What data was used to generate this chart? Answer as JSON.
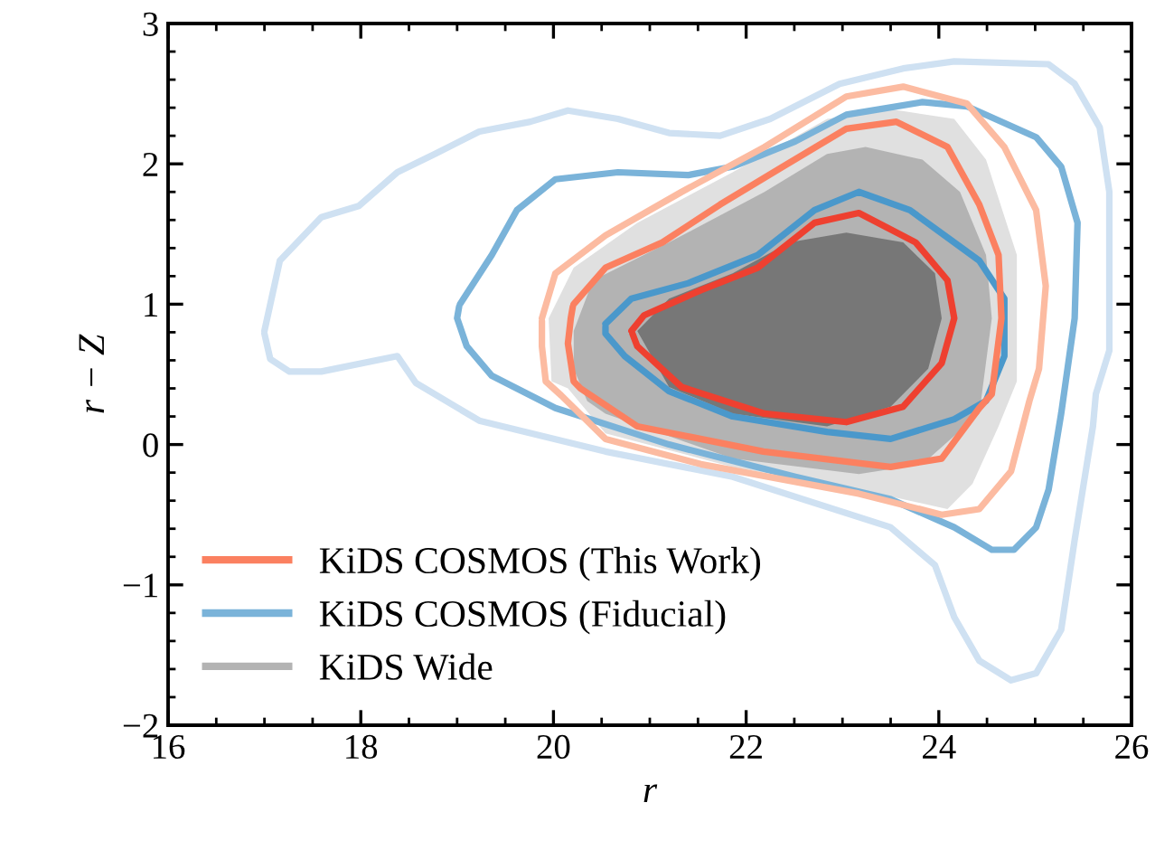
{
  "chart_data": {
    "type": "line",
    "xlabel": "r",
    "ylabel": "r − Z",
    "xlim": [
      16,
      26
    ],
    "ylim": [
      -2,
      3
    ],
    "xticks": [
      16,
      18,
      20,
      22,
      24,
      26
    ],
    "yticks": [
      -2,
      -1,
      0,
      1,
      2,
      3
    ],
    "grid": false,
    "legend": "bottom left",
    "marker": "none",
    "line_style": "solid",
    "series": [
      {
        "type": "area",
        "color": "#e0e0e0",
        "x": [
          19.95,
          20.21,
          20.87,
          21.86,
          22.84,
          23.5,
          24.16,
          24.49,
          24.81,
          24.81,
          24.62,
          24.35,
          24.09,
          23.17,
          21.86,
          20.54,
          20.15,
          19.98,
          19.95
        ],
        "values": [
          0.9,
          1.26,
          1.58,
          1.94,
          2.32,
          2.39,
          2.32,
          2.03,
          1.35,
          0.45,
          0.13,
          -0.28,
          -0.46,
          -0.32,
          -0.16,
          0.08,
          0.4,
          0.45,
          0.9
        ]
      },
      {
        "type": "area",
        "name": "KiDS Wide",
        "color": "#b3b3b3",
        "x": [
          20.21,
          20.41,
          21.2,
          22.19,
          22.84,
          23.24,
          23.83,
          24.22,
          24.49,
          24.55,
          24.42,
          23.83,
          23.17,
          21.86,
          20.54,
          20.35,
          20.21,
          20.21
        ],
        "values": [
          0.81,
          1.17,
          1.44,
          1.8,
          2.07,
          2.12,
          2.03,
          1.8,
          1.35,
          0.9,
          0.22,
          -0.14,
          -0.21,
          -0.1,
          0.22,
          0.31,
          0.54,
          0.81
        ]
      },
      {
        "type": "area",
        "color": "#777777",
        "x": [
          20.87,
          21.2,
          21.86,
          22.45,
          23.04,
          23.63,
          23.96,
          24.03,
          23.89,
          23.5,
          22.84,
          21.86,
          21.2,
          20.87
        ],
        "values": [
          0.81,
          1.04,
          1.22,
          1.44,
          1.51,
          1.44,
          1.22,
          0.9,
          0.54,
          0.27,
          0.13,
          0.22,
          0.41,
          0.81
        ]
      },
      {
        "color": "#cfe1f2",
        "x": [
          17.0,
          17.16,
          17.59,
          17.98,
          18.38,
          18.77,
          19.23,
          19.76,
          20.15,
          20.67,
          21.2,
          21.73,
          22.25,
          22.97,
          23.63,
          24.16,
          25.14,
          25.41,
          25.67,
          25.77,
          25.77,
          25.63,
          25.6,
          25.41,
          25.27,
          25.01,
          24.75,
          24.42,
          24.16,
          23.96,
          23.5,
          21.86,
          20.54,
          19.23,
          18.57,
          18.38,
          17.59,
          17.26,
          17.06,
          17.0
        ],
        "values": [
          0.81,
          1.31,
          1.62,
          1.7,
          1.94,
          2.07,
          2.23,
          2.3,
          2.38,
          2.32,
          2.22,
          2.2,
          2.32,
          2.57,
          2.68,
          2.73,
          2.71,
          2.57,
          2.26,
          1.8,
          0.67,
          0.36,
          0.13,
          -0.68,
          -1.32,
          -1.63,
          -1.68,
          -1.54,
          -1.23,
          -0.86,
          -0.59,
          -0.23,
          -0.05,
          0.17,
          0.44,
          0.63,
          0.52,
          0.52,
          0.61,
          0.79
        ]
      },
      {
        "name": "KiDS COSMOS (Fiducial)",
        "color": "#7ab3d9",
        "x": [
          19.03,
          19.36,
          19.62,
          20.02,
          20.67,
          21.4,
          21.86,
          22.51,
          23.04,
          23.83,
          24.29,
          25.01,
          25.27,
          25.44,
          25.41,
          25.27,
          25.14,
          25.01,
          24.78,
          24.55,
          24.16,
          23.5,
          22.51,
          21.2,
          20.02,
          19.36,
          19.1,
          19.0,
          19.02
        ],
        "values": [
          1.0,
          1.35,
          1.67,
          1.89,
          1.94,
          1.92,
          1.98,
          2.16,
          2.35,
          2.44,
          2.41,
          2.19,
          1.98,
          1.58,
          0.9,
          0.22,
          -0.32,
          -0.59,
          -0.75,
          -0.75,
          -0.59,
          -0.39,
          -0.23,
          0.0,
          0.26,
          0.49,
          0.7,
          0.9,
          0.98
        ]
      },
      {
        "color": "#4a98cb",
        "x": [
          20.54,
          20.81,
          21.4,
          22.12,
          22.71,
          23.17,
          23.7,
          24.42,
          24.68,
          24.68,
          24.49,
          24.16,
          23.5,
          22.84,
          21.86,
          21.2,
          20.74,
          20.54,
          20.54
        ],
        "values": [
          0.86,
          1.04,
          1.15,
          1.35,
          1.67,
          1.8,
          1.67,
          1.31,
          1.04,
          0.63,
          0.31,
          0.18,
          0.04,
          0.09,
          0.2,
          0.38,
          0.63,
          0.79,
          0.84
        ]
      },
      {
        "color": "#fcbba1",
        "x": [
          19.88,
          20.02,
          20.54,
          21.33,
          22.19,
          23.04,
          23.63,
          24.29,
          24.68,
          25.01,
          25.11,
          25.04,
          24.94,
          24.75,
          24.42,
          24.03,
          23.17,
          21.53,
          20.54,
          20.08,
          19.92,
          19.88,
          19.88
        ],
        "values": [
          0.9,
          1.22,
          1.49,
          1.8,
          2.12,
          2.48,
          2.55,
          2.43,
          2.12,
          1.67,
          1.13,
          0.54,
          0.31,
          -0.19,
          -0.46,
          -0.5,
          -0.35,
          -0.14,
          0.04,
          0.35,
          0.45,
          0.7,
          0.88
        ]
      },
      {
        "name": "KiDS COSMOS (This Work)",
        "color": "#fb8060",
        "x": [
          20.21,
          20.54,
          21.13,
          21.73,
          22.38,
          23.04,
          23.56,
          24.09,
          24.42,
          24.62,
          24.65,
          24.55,
          24.42,
          24.03,
          23.5,
          22.18,
          20.87,
          20.28,
          20.21,
          20.15,
          20.18,
          20.2
        ],
        "values": [
          1.0,
          1.26,
          1.44,
          1.71,
          1.98,
          2.25,
          2.3,
          2.12,
          1.71,
          1.35,
          0.9,
          0.36,
          0.26,
          -0.1,
          -0.16,
          -0.05,
          0.13,
          0.4,
          0.45,
          0.72,
          0.9,
          0.98
        ]
      },
      {
        "color": "#ee4030",
        "x": [
          20.81,
          20.94,
          21.53,
          22.12,
          22.71,
          23.17,
          23.76,
          24.09,
          24.16,
          24.03,
          23.63,
          23.04,
          22.19,
          21.33,
          20.87,
          20.82
        ],
        "values": [
          0.81,
          0.92,
          1.1,
          1.26,
          1.58,
          1.65,
          1.44,
          1.17,
          0.9,
          0.58,
          0.27,
          0.16,
          0.22,
          0.41,
          0.7,
          0.79
        ]
      }
    ]
  }
}
